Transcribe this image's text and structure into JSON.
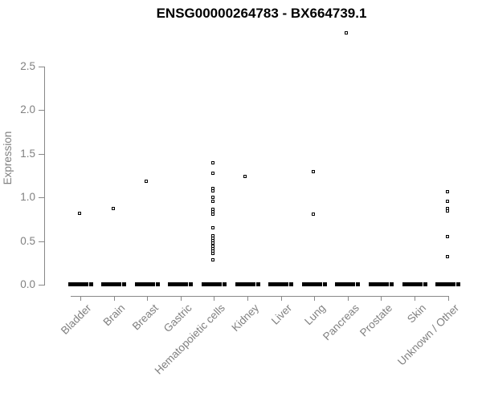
{
  "chart_data": {
    "type": "scatter",
    "title": "ENSG00000264783 - BX664739.1",
    "xlabel": "",
    "ylabel": "Expression",
    "ylim": [
      0.0,
      2.5
    ],
    "yticks": [
      "0.0",
      "0.5",
      "1.0",
      "1.5",
      "2.0",
      "2.5"
    ],
    "grid": false,
    "legend": false,
    "marker": "open-square",
    "colors": {
      "marker": "#000000",
      "axis_line": "#888888",
      "tick_text": "#808080",
      "title_text": "#000000"
    },
    "categories": [
      "Bladder",
      "Brain",
      "Breast",
      "Gastric",
      "Hematopoietic cells",
      "Kidney",
      "Liver",
      "Lung",
      "Pancreas",
      "Prostate",
      "Skin",
      "Unknown / Other"
    ],
    "series": [
      {
        "category": "Bladder",
        "values": [
          0.81
        ],
        "zero_cluster": true
      },
      {
        "category": "Brain",
        "values": [
          0.87
        ],
        "zero_cluster": true
      },
      {
        "category": "Breast",
        "values": [
          1.18
        ],
        "zero_cluster": true
      },
      {
        "category": "Gastric",
        "values": [],
        "zero_cluster": true
      },
      {
        "category": "Hematopoietic cells",
        "values": [
          1.39,
          1.27,
          1.1,
          1.07,
          1.0,
          0.95,
          0.86,
          0.83,
          0.8,
          0.65,
          0.56,
          0.53,
          0.5,
          0.47,
          0.44,
          0.41,
          0.38,
          0.35,
          0.28
        ],
        "zero_cluster": true
      },
      {
        "category": "Kidney",
        "values": [
          1.24
        ],
        "zero_cluster": true
      },
      {
        "category": "Liver",
        "values": [],
        "zero_cluster": true
      },
      {
        "category": "Lung",
        "values": [
          1.29,
          0.8
        ],
        "zero_cluster": true
      },
      {
        "category": "Pancreas",
        "values": [
          2.88
        ],
        "zero_cluster": true
      },
      {
        "category": "Prostate",
        "values": [],
        "zero_cluster": true
      },
      {
        "category": "Skin",
        "values": [],
        "zero_cluster": true
      },
      {
        "category": "Unknown / Other",
        "values": [
          1.06,
          0.95,
          0.87,
          0.84,
          0.55,
          0.32
        ],
        "zero_cluster": true
      }
    ]
  }
}
